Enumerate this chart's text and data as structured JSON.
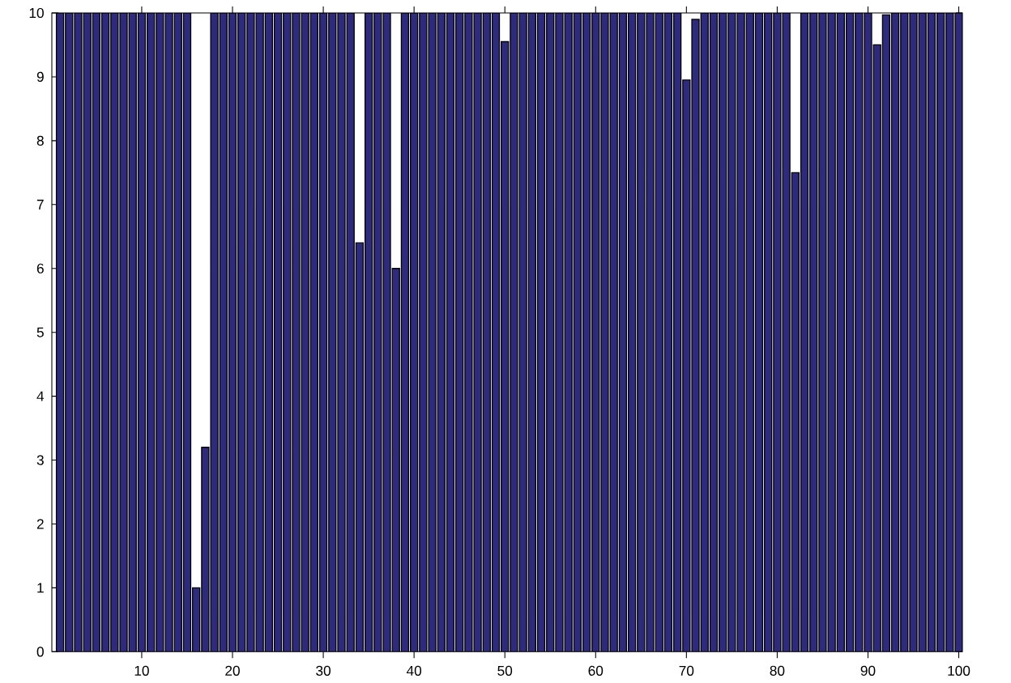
{
  "chart_data": {
    "type": "bar",
    "x": [
      1,
      2,
      3,
      4,
      5,
      6,
      7,
      8,
      9,
      10,
      11,
      12,
      13,
      14,
      15,
      16,
      17,
      18,
      19,
      20,
      21,
      22,
      23,
      24,
      25,
      26,
      27,
      28,
      29,
      30,
      31,
      32,
      33,
      34,
      35,
      36,
      37,
      38,
      39,
      40,
      41,
      42,
      43,
      44,
      45,
      46,
      47,
      48,
      49,
      50,
      51,
      52,
      53,
      54,
      55,
      56,
      57,
      58,
      59,
      60,
      61,
      62,
      63,
      64,
      65,
      66,
      67,
      68,
      69,
      70,
      71,
      72,
      73,
      74,
      75,
      76,
      77,
      78,
      79,
      80,
      81,
      82,
      83,
      84,
      85,
      86,
      87,
      88,
      89,
      90,
      91,
      92,
      93,
      94,
      95,
      96,
      97,
      98,
      99,
      100
    ],
    "values": [
      10,
      10,
      10,
      10,
      10,
      10,
      10,
      10,
      10,
      10,
      10,
      10,
      10,
      10,
      10,
      1.0,
      3.2,
      10,
      10,
      10,
      10,
      10,
      10,
      10,
      10,
      10,
      10,
      10,
      10,
      10,
      10,
      10,
      10,
      6.4,
      10,
      10,
      10,
      6.0,
      10,
      10,
      10,
      10,
      10,
      10,
      10,
      10,
      10,
      10,
      10,
      9.55,
      10,
      10,
      10,
      10,
      10,
      10,
      10,
      10,
      10,
      10,
      10,
      10,
      10,
      10,
      10,
      10,
      10,
      10,
      10,
      8.95,
      9.9,
      10,
      10,
      10,
      10,
      10,
      10,
      10,
      10,
      10,
      10,
      7.5,
      10,
      10,
      10,
      10,
      10,
      10,
      10,
      10,
      9.5,
      9.97,
      10,
      10,
      10,
      10,
      10,
      10,
      10,
      10
    ],
    "color": "#2e2a7e",
    "xlim": [
      0.1,
      100.4
    ],
    "ylim": [
      0,
      10
    ],
    "xticks": [
      10,
      20,
      30,
      40,
      50,
      60,
      70,
      80,
      90,
      100
    ],
    "yticks": [
      0,
      1,
      2,
      3,
      4,
      5,
      6,
      7,
      8,
      9,
      10
    ],
    "grid": false
  }
}
